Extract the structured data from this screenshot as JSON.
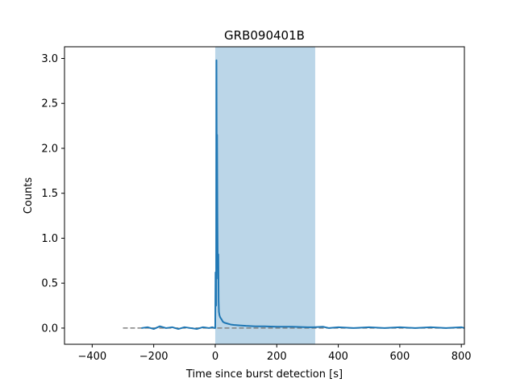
{
  "chart_data": {
    "type": "line",
    "title": "GRB090401B",
    "xlabel": "Time since burst detection [s]",
    "ylabel": "Counts",
    "xlim": [
      -490,
      810
    ],
    "ylim": [
      -0.18,
      3.13
    ],
    "xticks": [
      -400,
      -200,
      0,
      200,
      400,
      600,
      800
    ],
    "xtick_labels": [
      "−400",
      "−200",
      "0",
      "200",
      "400",
      "600",
      "800"
    ],
    "yticks": [
      0.0,
      0.5,
      1.0,
      1.5,
      2.0,
      2.5,
      3.0
    ],
    "ytick_labels": [
      "0.0",
      "0.5",
      "1.0",
      "1.5",
      "2.0",
      "2.5",
      "3.0"
    ],
    "grid": false,
    "colors": {
      "series": "#1f77b4",
      "shaded": "#1f77b4",
      "baseline": "#808080"
    },
    "shaded_region": {
      "x": [
        0,
        325
      ]
    },
    "baseline": {
      "y": 0.0,
      "x": [
        -300,
        810
      ],
      "style": "dashed"
    },
    "series": [
      {
        "x": [
          -240,
          -220,
          -200,
          -180,
          -160,
          -140,
          -120,
          -100,
          -80,
          -60,
          -40,
          -20,
          -10,
          -2,
          0,
          1,
          2,
          3,
          4,
          5,
          6,
          7,
          8,
          9,
          10,
          11,
          12,
          14,
          16,
          20,
          25,
          30,
          40,
          50,
          60,
          80,
          100,
          130,
          160,
          200,
          250,
          300,
          320,
          350,
          370,
          400,
          450,
          500,
          550,
          600,
          650,
          700,
          750,
          800,
          810
        ],
        "y": [
          0.0,
          0.01,
          -0.01,
          0.02,
          0.0,
          0.01,
          -0.01,
          0.01,
          0.0,
          -0.01,
          0.01,
          0.0,
          0.01,
          0.0,
          0.0,
          0.62,
          0.3,
          0.25,
          2.98,
          1.7,
          2.15,
          1.3,
          0.75,
          0.55,
          0.82,
          0.3,
          0.18,
          0.14,
          0.12,
          0.1,
          0.07,
          0.06,
          0.05,
          0.04,
          0.035,
          0.03,
          0.025,
          0.02,
          0.02,
          0.015,
          0.015,
          0.01,
          0.01,
          0.015,
          0.0,
          0.01,
          0.0,
          0.01,
          0.0,
          0.01,
          0.0,
          0.01,
          0.0,
          0.01,
          0.0
        ]
      }
    ]
  }
}
